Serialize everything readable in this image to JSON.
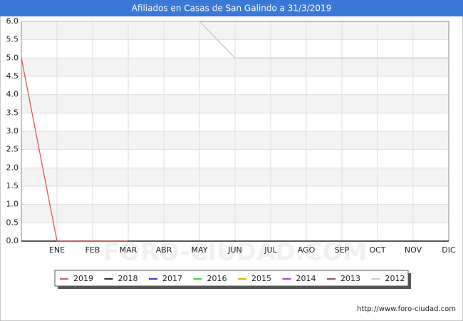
{
  "chart_data": {
    "type": "line",
    "title": "Afiliados en Casas de San Galindo a 31/3/2019",
    "watermark": "FORO-CIUDAD.COM",
    "source": "http://www.foro-ciudad.com",
    "categories": [
      null,
      "ENE",
      "FEB",
      "MAR",
      "ABR",
      "MAY",
      "JUN",
      "JUL",
      "AGO",
      "SEP",
      "OCT",
      "NOV",
      "DIC"
    ],
    "ylim": [
      0,
      6
    ],
    "yticks": [
      {
        "value": 0,
        "label": "0.0"
      },
      {
        "value": 0.5,
        "label": "0.5"
      },
      {
        "value": 1,
        "label": "1.0"
      },
      {
        "value": 1.5,
        "label": "1.5"
      },
      {
        "value": 2,
        "label": "2.0"
      },
      {
        "value": 2.5,
        "label": "2.5"
      },
      {
        "value": 3,
        "label": "3.0"
      },
      {
        "value": 3.5,
        "label": "3.5"
      },
      {
        "value": 4,
        "label": "4.0"
      },
      {
        "value": 4.5,
        "label": "4.5"
      },
      {
        "value": 5,
        "label": "5.0"
      },
      {
        "value": 5.5,
        "label": "5.5"
      },
      {
        "value": 6,
        "label": "6.0"
      }
    ],
    "grid": true,
    "series": [
      {
        "name": "2019",
        "color": "#e05555",
        "values": [
          5,
          0,
          0,
          0,
          null,
          null,
          null,
          null,
          null,
          null,
          null,
          null,
          null
        ]
      },
      {
        "name": "2018",
        "color": "#333333",
        "values": [
          0,
          0,
          0,
          0,
          0,
          0,
          0,
          0,
          0,
          0,
          0,
          0,
          0
        ]
      },
      {
        "name": "2017",
        "color": "#3a3ad0",
        "values": [
          0,
          0,
          0,
          0,
          0,
          0,
          0,
          0,
          0,
          0,
          0,
          0,
          0
        ]
      },
      {
        "name": "2016",
        "color": "#3ed63e",
        "values": [
          0,
          0,
          0,
          0,
          0,
          0,
          0,
          0,
          0,
          0,
          0,
          0,
          0
        ]
      },
      {
        "name": "2015",
        "color": "#f5a800",
        "values": [
          0,
          0,
          0,
          0,
          0,
          0,
          0,
          0,
          0,
          0,
          0,
          0,
          0
        ]
      },
      {
        "name": "2014",
        "color": "#a845d8",
        "values": [
          0,
          0,
          0,
          0,
          0,
          0,
          0,
          0,
          0,
          0,
          0,
          0,
          0
        ]
      },
      {
        "name": "2013",
        "color": "#a84466",
        "values": [
          0,
          0,
          0,
          0,
          0,
          0,
          0,
          0,
          0,
          0,
          0,
          0,
          0
        ]
      },
      {
        "name": "2012",
        "color": "#c8c8c8",
        "values": [
          6,
          6,
          6,
          6,
          6,
          6,
          5,
          5,
          5,
          5,
          5,
          5,
          5
        ]
      }
    ]
  }
}
